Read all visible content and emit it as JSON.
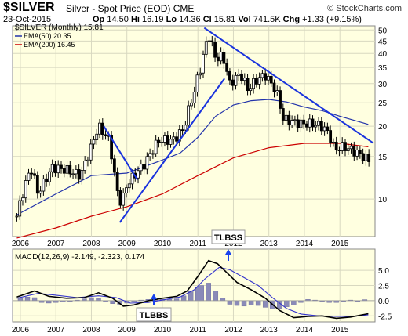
{
  "header": {
    "symbol": "$SILVER",
    "description": "Silver - Spot Price (EOD)",
    "exchange": "CME",
    "logo": "© StockCharts.com",
    "date": "23-Oct-2015",
    "open_label": "Op",
    "open": "14.50",
    "high_label": "Hi",
    "high": "16.19",
    "low_label": "Lo",
    "low": "14.36",
    "close_label": "Cl",
    "close": "15.81",
    "vol_label": "Vol",
    "vol": "741.5K",
    "chg_label": "Chg",
    "chg": "+1.33 (+9.15%)",
    "legend_price": "$SILVER (Monthly) 15.81",
    "legend_ema50": "EMA(50) 20.35",
    "legend_ema200": "EMA(200) 16.45"
  },
  "colors": {
    "panel_bg": "#ffffe0",
    "grid": "#d8d8c0",
    "ema50": "#2233aa",
    "ema200": "#cc0000",
    "trendline": "#1a33dd",
    "macd": "#000000",
    "signal": "#3333cc",
    "histogram": "#8a8ab8",
    "annotation_text": "#000000"
  },
  "annotations": {
    "tlbss": "TLBSS",
    "tlbbs": "TLBBS"
  },
  "chart_data": [
    {
      "type": "candlestick",
      "title": "$SILVER (Monthly) 15.81",
      "scale": "log",
      "ylim": [
        7,
        52
      ],
      "y_ticks": [
        10,
        15,
        20,
        25,
        30,
        35,
        40,
        45,
        50
      ],
      "x_ticks": [
        "2006",
        "2007",
        "2008",
        "2009",
        "2010",
        "2011",
        "2012",
        "2013",
        "2014",
        "2015"
      ],
      "grid": true,
      "legend": "top-left",
      "price_anchors": [
        [
          2005.9,
          8.5
        ],
        [
          2006.3,
          13.5
        ],
        [
          2006.5,
          10.5
        ],
        [
          2006.9,
          13.5
        ],
        [
          2007.3,
          13.2
        ],
        [
          2007.7,
          12.5
        ],
        [
          2008.0,
          16.5
        ],
        [
          2008.2,
          20.0
        ],
        [
          2008.5,
          17.5
        ],
        [
          2008.7,
          11.0
        ],
        [
          2008.85,
          9.5
        ],
        [
          2009.0,
          11.5
        ],
        [
          2009.5,
          14.0
        ],
        [
          2009.9,
          17.5
        ],
        [
          2010.3,
          17.5
        ],
        [
          2010.6,
          19.5
        ],
        [
          2010.9,
          28.0
        ],
        [
          2011.1,
          36.0
        ],
        [
          2011.3,
          48.0
        ],
        [
          2011.5,
          38.0
        ],
        [
          2011.7,
          39.0
        ],
        [
          2011.9,
          30.0
        ],
        [
          2012.2,
          33.0
        ],
        [
          2012.4,
          28.5
        ],
        [
          2012.7,
          31.5
        ],
        [
          2012.9,
          32.5
        ],
        [
          2013.2,
          28.0
        ],
        [
          2013.4,
          21.5
        ],
        [
          2013.6,
          21.0
        ],
        [
          2013.9,
          20.5
        ],
        [
          2014.2,
          20.5
        ],
        [
          2014.5,
          20.0
        ],
        [
          2014.7,
          18.5
        ],
        [
          2014.85,
          16.0
        ],
        [
          2015.1,
          16.5
        ],
        [
          2015.5,
          15.5
        ],
        [
          2015.8,
          14.5
        ]
      ],
      "ema50": [
        [
          2005.9,
          8.6
        ],
        [
          2007.0,
          10.5
        ],
        [
          2008.0,
          12.5
        ],
        [
          2009.0,
          12.8
        ],
        [
          2010.0,
          14.5
        ],
        [
          2010.5,
          15.5
        ],
        [
          2011.0,
          18.0
        ],
        [
          2011.5,
          22.0
        ],
        [
          2012.0,
          24.5
        ],
        [
          2012.5,
          25.5
        ],
        [
          2013.0,
          25.8
        ],
        [
          2013.5,
          25.2
        ],
        [
          2014.0,
          24.0
        ],
        [
          2014.5,
          23.2
        ],
        [
          2015.0,
          22.0
        ],
        [
          2015.8,
          20.35
        ]
      ],
      "ema200": [
        [
          2005.9,
          6.9
        ],
        [
          2007.0,
          7.6
        ],
        [
          2008.0,
          8.5
        ],
        [
          2009.0,
          9.3
        ],
        [
          2010.0,
          10.5
        ],
        [
          2011.0,
          12.5
        ],
        [
          2012.0,
          14.8
        ],
        [
          2013.0,
          16.3
        ],
        [
          2014.0,
          17.0
        ],
        [
          2015.0,
          17.0
        ],
        [
          2015.8,
          16.45
        ]
      ],
      "trendlines": [
        [
          [
            2008.35,
            20.0
          ],
          [
            2009.3,
            12.0
          ]
        ],
        [
          [
            2008.8,
            8.0
          ],
          [
            2011.75,
            31.5
          ]
        ],
        [
          [
            2011.18,
            51.0
          ],
          [
            2015.95,
            17.0
          ]
        ]
      ]
    },
    {
      "type": "line",
      "title": "MACD(12,26,9) -2.149, -2.323, 0.174",
      "series": [
        {
          "name": "MACD",
          "value": -2.149
        },
        {
          "name": "Signal",
          "value": -2.323
        },
        {
          "name": "Histogram",
          "value": 0.174
        }
      ],
      "ylim": [
        -3.5,
        8.5
      ],
      "y_ticks": [
        -2.5,
        0.0,
        2.5,
        5.0
      ],
      "x_ticks": [
        "2006",
        "2007",
        "2008",
        "2009",
        "2010",
        "2011",
        "2012",
        "2013",
        "2014",
        "2015"
      ],
      "macd": [
        [
          2005.9,
          0.6
        ],
        [
          2006.4,
          1.6
        ],
        [
          2006.8,
          0.7
        ],
        [
          2007.3,
          0.4
        ],
        [
          2007.8,
          0.5
        ],
        [
          2008.2,
          1.3
        ],
        [
          2008.6,
          0.4
        ],
        [
          2008.9,
          -0.9
        ],
        [
          2009.2,
          -0.7
        ],
        [
          2009.6,
          0.0
        ],
        [
          2010.0,
          0.4
        ],
        [
          2010.4,
          0.7
        ],
        [
          2010.7,
          1.6
        ],
        [
          2011.0,
          4.0
        ],
        [
          2011.3,
          6.6
        ],
        [
          2011.55,
          6.1
        ],
        [
          2011.8,
          4.7
        ],
        [
          2012.1,
          3.0
        ],
        [
          2012.5,
          1.8
        ],
        [
          2012.9,
          0.4
        ],
        [
          2013.3,
          -1.6
        ],
        [
          2013.7,
          -2.8
        ],
        [
          2014.1,
          -2.6
        ],
        [
          2014.5,
          -2.5
        ],
        [
          2014.9,
          -2.9
        ],
        [
          2015.3,
          -2.7
        ],
        [
          2015.8,
          -2.149
        ]
      ],
      "signal": [
        [
          2005.9,
          0.4
        ],
        [
          2006.5,
          1.2
        ],
        [
          2007.0,
          0.9
        ],
        [
          2007.6,
          0.5
        ],
        [
          2008.2,
          0.8
        ],
        [
          2008.7,
          0.5
        ],
        [
          2009.1,
          -0.4
        ],
        [
          2009.6,
          -0.3
        ],
        [
          2010.0,
          0.1
        ],
        [
          2010.5,
          0.6
        ],
        [
          2010.9,
          1.8
        ],
        [
          2011.2,
          3.6
        ],
        [
          2011.6,
          5.5
        ],
        [
          2011.9,
          5.1
        ],
        [
          2012.3,
          3.8
        ],
        [
          2012.7,
          2.5
        ],
        [
          2013.1,
          0.5
        ],
        [
          2013.5,
          -1.3
        ],
        [
          2013.9,
          -2.2
        ],
        [
          2014.4,
          -2.5
        ],
        [
          2014.9,
          -2.6
        ],
        [
          2015.4,
          -2.6
        ],
        [
          2015.8,
          -2.323
        ]
      ],
      "histogram": [
        [
          2006.0,
          0.4
        ],
        [
          2006.2,
          0.6
        ],
        [
          2006.4,
          0.5
        ],
        [
          2006.6,
          -0.3
        ],
        [
          2006.8,
          -0.4
        ],
        [
          2007.0,
          -0.3
        ],
        [
          2007.2,
          -0.2
        ],
        [
          2007.4,
          -0.1
        ],
        [
          2007.6,
          0.1
        ],
        [
          2007.8,
          0.3
        ],
        [
          2008.0,
          0.5
        ],
        [
          2008.2,
          0.4
        ],
        [
          2008.4,
          -0.2
        ],
        [
          2008.6,
          -0.5
        ],
        [
          2008.8,
          -0.6
        ],
        [
          2009.0,
          -0.4
        ],
        [
          2009.2,
          -0.2
        ],
        [
          2009.4,
          0.1
        ],
        [
          2009.6,
          0.2
        ],
        [
          2009.8,
          0.2
        ],
        [
          2010.0,
          0.2
        ],
        [
          2010.2,
          0.2
        ],
        [
          2010.4,
          0.3
        ],
        [
          2010.6,
          0.8
        ],
        [
          2010.8,
          1.6
        ],
        [
          2011.0,
          2.2
        ],
        [
          2011.1,
          2.5
        ],
        [
          2011.3,
          2.9
        ],
        [
          2011.5,
          1.6
        ],
        [
          2011.7,
          0.4
        ],
        [
          2011.9,
          -0.6
        ],
        [
          2012.1,
          -0.8
        ],
        [
          2012.3,
          -0.9
        ],
        [
          2012.5,
          -0.7
        ],
        [
          2012.7,
          -0.8
        ],
        [
          2012.9,
          -1.1
        ],
        [
          2013.1,
          -1.4
        ],
        [
          2013.3,
          -1.3
        ],
        [
          2013.5,
          -1.0
        ],
        [
          2013.7,
          -0.7
        ],
        [
          2013.9,
          -0.3
        ],
        [
          2014.1,
          0.2
        ],
        [
          2014.3,
          0.1
        ],
        [
          2014.5,
          0.0
        ],
        [
          2014.7,
          -0.3
        ],
        [
          2014.9,
          -0.3
        ],
        [
          2015.1,
          -0.1
        ],
        [
          2015.3,
          0.1
        ],
        [
          2015.5,
          -0.1
        ],
        [
          2015.7,
          0.17
        ]
      ]
    }
  ]
}
